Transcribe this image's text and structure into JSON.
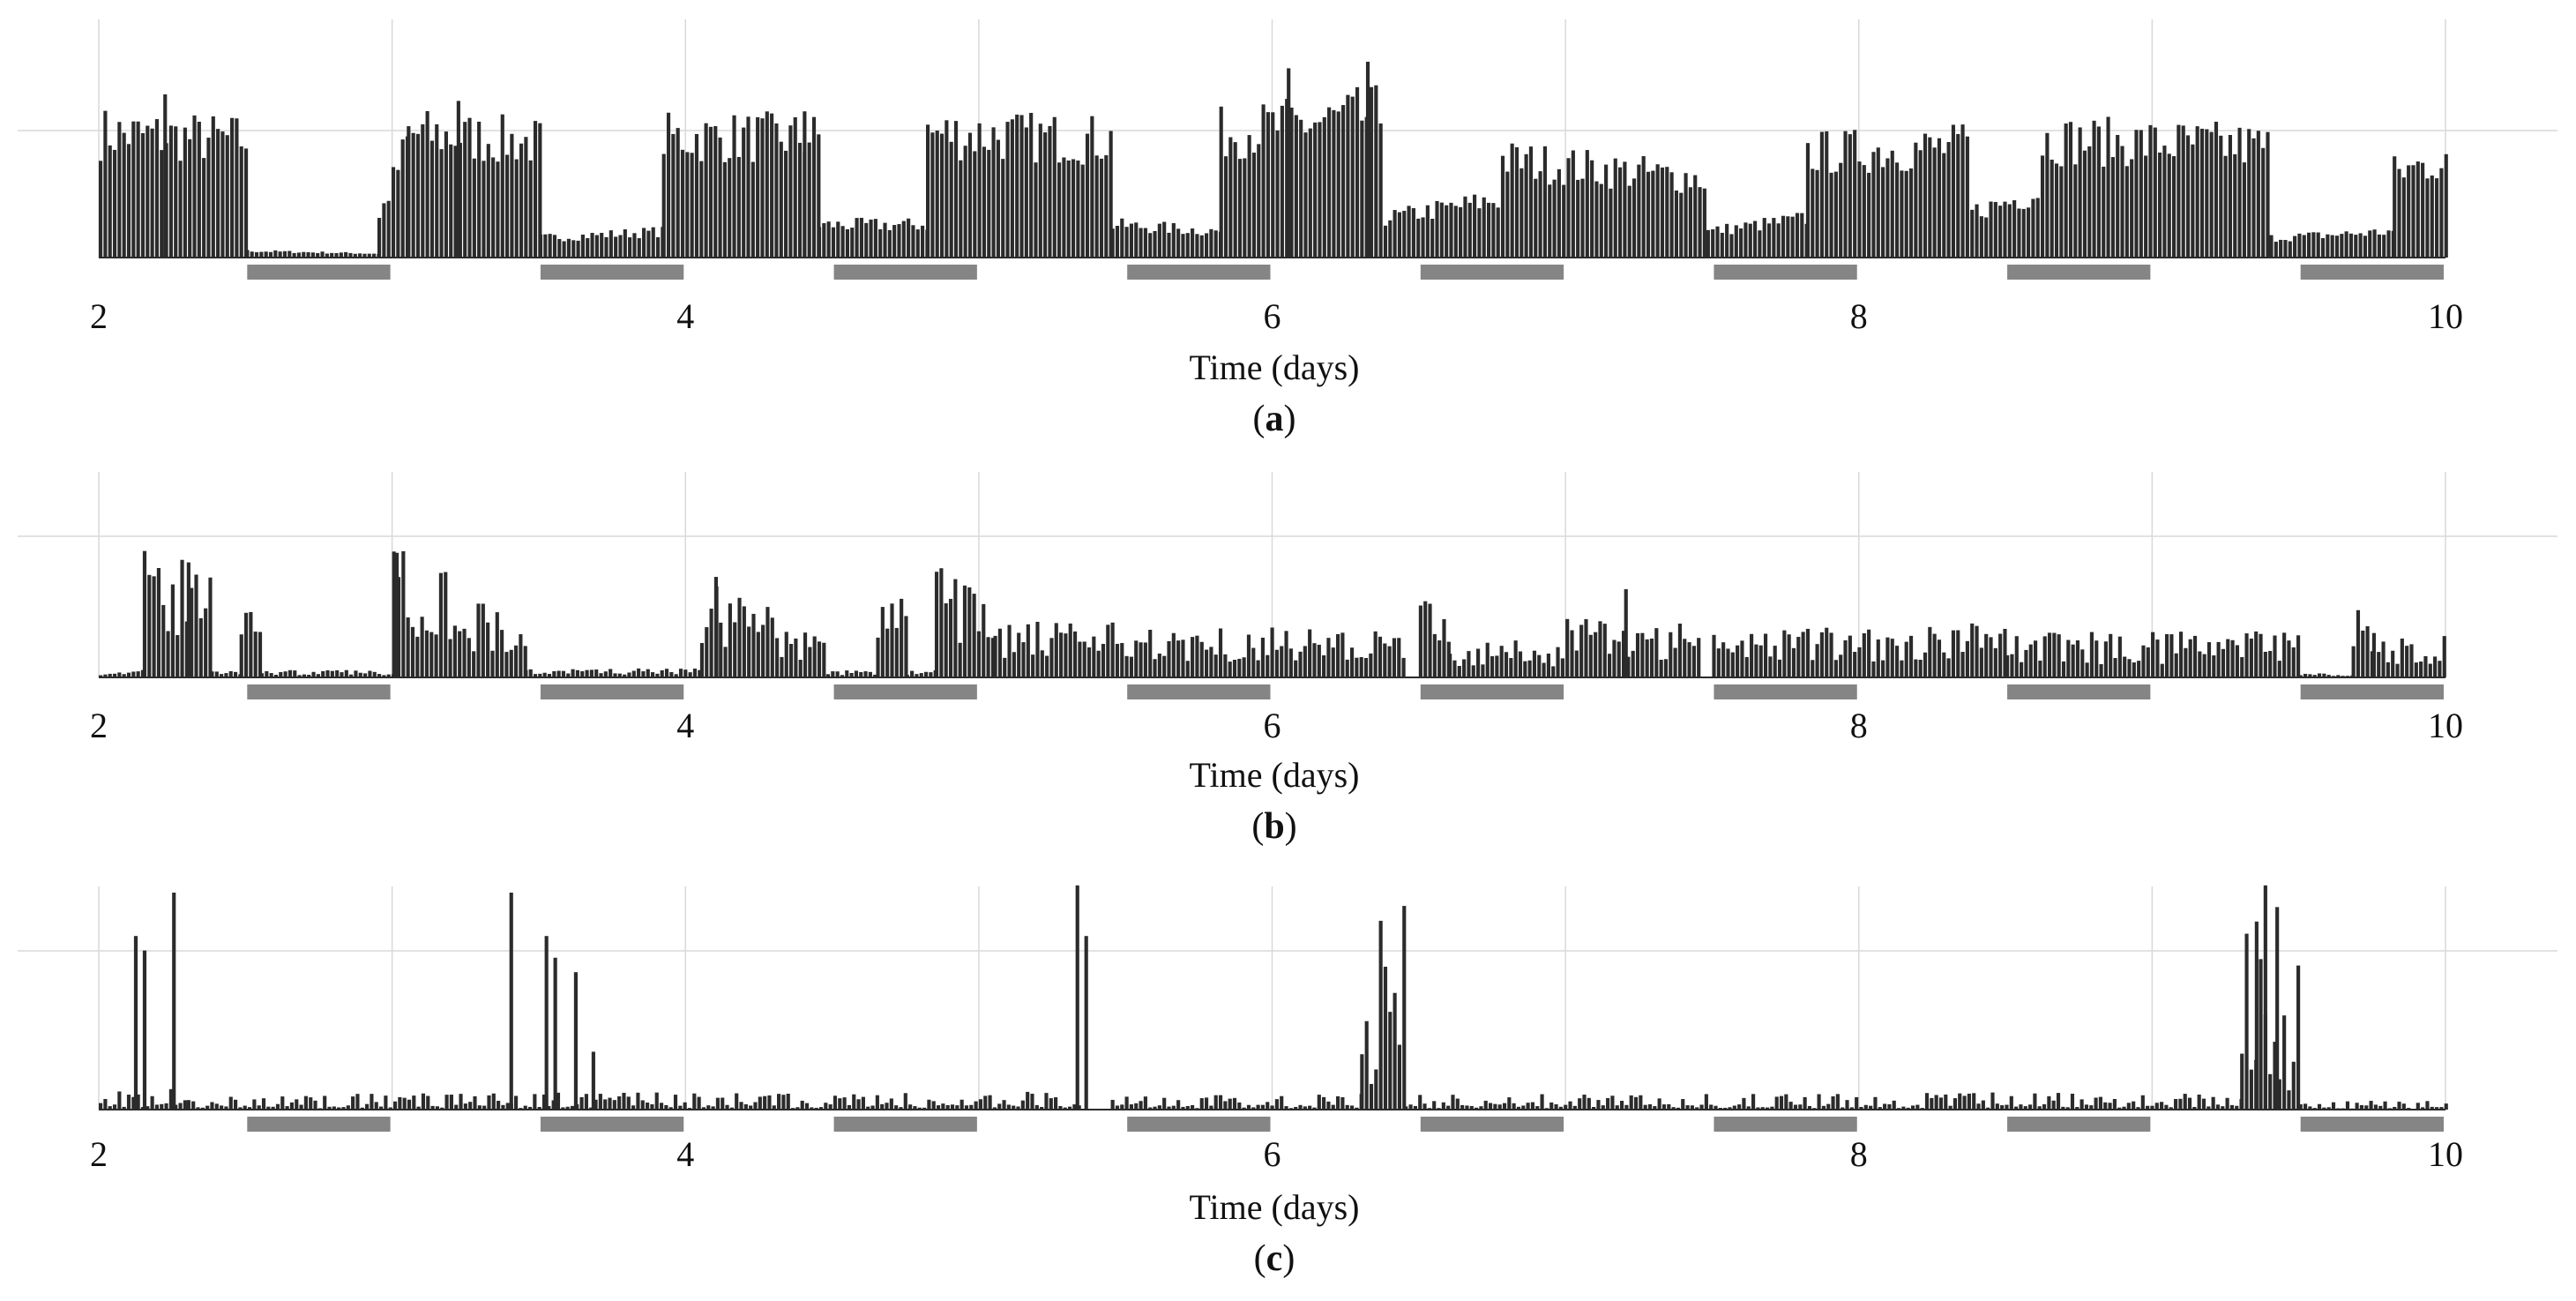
{
  "colors": {
    "bar": "#2b2b2b",
    "night_bar": "#858585",
    "grid": "#d9d9d9",
    "text": "#111111"
  },
  "chart_data": [
    {
      "type": "bar",
      "panel_label_prefix": "(",
      "panel_label_letter": "a",
      "panel_label_suffix": ")",
      "xlabel": "Time (days)",
      "xlim": [
        2,
        10
      ],
      "ylim": [
        0,
        1.5
      ],
      "xticks": [
        "2",
        "4",
        "6",
        "8",
        "10"
      ],
      "grid": "on",
      "dark_periods": [
        [
          2.5,
          3.0
        ],
        [
          3.5,
          4.0
        ],
        [
          4.5,
          5.0
        ],
        [
          5.5,
          6.0
        ],
        [
          6.5,
          7.0
        ],
        [
          7.5,
          8.0
        ],
        [
          8.5,
          9.0
        ],
        [
          9.5,
          10.0
        ]
      ],
      "segments": [
        {
          "x": [
            2.0,
            2.5
          ],
          "y": [
            0.95,
            0.9
          ]
        },
        {
          "x": [
            2.5,
            2.95
          ],
          "y": [
            0.05,
            0.03
          ]
        },
        {
          "x": [
            2.95,
            3.05
          ],
          "y": [
            0.3,
            0.9
          ]
        },
        {
          "x": [
            3.05,
            3.5
          ],
          "y": [
            0.95,
            0.88
          ]
        },
        {
          "x": [
            3.5,
            3.92
          ],
          "y": [
            0.15,
            0.2
          ]
        },
        {
          "x": [
            3.92,
            4.45
          ],
          "y": [
            0.92,
            0.92
          ]
        },
        {
          "x": [
            4.45,
            4.82
          ],
          "y": [
            0.25,
            0.25
          ]
        },
        {
          "x": [
            4.82,
            5.45
          ],
          "y": [
            0.95,
            0.9
          ]
        },
        {
          "x": [
            5.45,
            5.82
          ],
          "y": [
            0.25,
            0.2
          ]
        },
        {
          "x": [
            5.82,
            6.38
          ],
          "y": [
            0.95,
            1.1
          ]
        },
        {
          "x": [
            6.38,
            6.78
          ],
          "y": [
            0.3,
            0.45
          ]
        },
        {
          "x": [
            6.78,
            7.48
          ],
          "y": [
            0.75,
            0.6
          ]
        },
        {
          "x": [
            7.48,
            7.82
          ],
          "y": [
            0.2,
            0.3
          ]
        },
        {
          "x": [
            7.82,
            8.38
          ],
          "y": [
            0.8,
            0.85
          ]
        },
        {
          "x": [
            8.38,
            8.62
          ],
          "y": [
            0.35,
            0.5
          ]
        },
        {
          "x": [
            8.62,
            9.4
          ],
          "y": [
            0.9,
            0.85
          ]
        },
        {
          "x": [
            9.4,
            9.82
          ],
          "y": [
            0.15,
            0.2
          ]
        },
        {
          "x": [
            9.82,
            10.0
          ],
          "y": [
            0.65,
            0.75
          ]
        }
      ],
      "spikes": [
        {
          "x": 6.05,
          "y": 1.45
        },
        {
          "x": 6.32,
          "y": 1.5
        },
        {
          "x": 2.22,
          "y": 1.25
        },
        {
          "x": 3.22,
          "y": 1.2
        },
        {
          "x": 4.4,
          "y": 1.12
        }
      ]
    },
    {
      "type": "bar",
      "panel_label_prefix": "(",
      "panel_label_letter": "b",
      "panel_label_suffix": ")",
      "xlabel": "Time (days)",
      "xlim": [
        2,
        10
      ],
      "ylim": [
        0,
        1.5
      ],
      "xticks": [
        "2",
        "4",
        "6",
        "8",
        "10"
      ],
      "grid": "on",
      "dark_periods": [
        [
          2.5,
          3.0
        ],
        [
          3.5,
          4.0
        ],
        [
          4.5,
          5.0
        ],
        [
          5.5,
          6.0
        ],
        [
          6.5,
          7.0
        ],
        [
          7.5,
          8.0
        ],
        [
          8.5,
          9.0
        ],
        [
          9.5,
          10.0
        ]
      ],
      "segments": [
        {
          "x": [
            2.0,
            2.15
          ],
          "y": [
            0.05,
            0.05
          ]
        },
        {
          "x": [
            2.15,
            2.38
          ],
          "y": [
            0.9,
            0.8
          ]
        },
        {
          "x": [
            2.38,
            2.48
          ],
          "y": [
            0.05,
            0.05
          ]
        },
        {
          "x": [
            2.48,
            2.55
          ],
          "y": [
            0.65,
            0.6
          ]
        },
        {
          "x": [
            2.55,
            3.0
          ],
          "y": [
            0.05,
            0.05
          ]
        },
        {
          "x": [
            3.0,
            3.45
          ],
          "y": [
            1.05,
            0.3
          ]
        },
        {
          "x": [
            3.45,
            4.05
          ],
          "y": [
            0.06,
            0.06
          ]
        },
        {
          "x": [
            4.05,
            4.48
          ],
          "y": [
            0.75,
            0.25
          ]
        },
        {
          "x": [
            4.48,
            4.65
          ],
          "y": [
            0.05,
            0.05
          ]
        },
        {
          "x": [
            4.65,
            4.75
          ],
          "y": [
            0.6,
            0.55
          ]
        },
        {
          "x": [
            4.75,
            4.85
          ],
          "y": [
            0.05,
            0.05
          ]
        },
        {
          "x": [
            4.85,
            5.05
          ],
          "y": [
            0.9,
            0.5
          ]
        },
        {
          "x": [
            5.05,
            6.25
          ],
          "y": [
            0.38,
            0.35
          ]
        },
        {
          "x": [
            6.25,
            6.45
          ],
          "y": [
            0.3,
            0.35
          ]
        },
        {
          "x": [
            6.5,
            6.6
          ],
          "y": [
            0.55,
            0.45
          ]
        },
        {
          "x": [
            6.6,
            7.0
          ],
          "y": [
            0.25,
            0.25
          ]
        },
        {
          "x": [
            7.0,
            7.45
          ],
          "y": [
            0.4,
            0.38
          ]
        },
        {
          "x": [
            7.5,
            8.5
          ],
          "y": [
            0.35,
            0.38
          ]
        },
        {
          "x": [
            8.5,
            9.5
          ],
          "y": [
            0.3,
            0.32
          ]
        },
        {
          "x": [
            9.5,
            9.68
          ],
          "y": [
            0.03,
            0.03
          ]
        },
        {
          "x": [
            9.68,
            9.75
          ],
          "y": [
            0.5,
            0.45
          ]
        },
        {
          "x": [
            9.75,
            10.0
          ],
          "y": [
            0.3,
            0.3
          ]
        }
      ],
      "spikes": [
        {
          "x": 3.01,
          "y": 1.3
        },
        {
          "x": 7.2,
          "y": 0.92
        },
        {
          "x": 2.3,
          "y": 1.2
        },
        {
          "x": 4.1,
          "y": 0.95
        }
      ]
    },
    {
      "type": "bar",
      "panel_label_prefix": "(",
      "panel_label_letter": "c",
      "panel_label_suffix": ")",
      "xlabel": "Time (days)",
      "xlim": [
        2,
        10
      ],
      "ylim": [
        0,
        1.5
      ],
      "xticks": [
        "2",
        "4",
        "6",
        "8",
        "10"
      ],
      "grid": "on",
      "dark_periods": [
        [
          2.5,
          3.0
        ],
        [
          3.5,
          4.0
        ],
        [
          4.5,
          5.0
        ],
        [
          5.5,
          6.0
        ],
        [
          6.5,
          7.0
        ],
        [
          7.5,
          8.0
        ],
        [
          8.5,
          9.0
        ],
        [
          9.5,
          10.0
        ]
      ],
      "segments": [
        {
          "x": [
            2.0,
            2.3
          ],
          "y": [
            0.1,
            0.1
          ]
        },
        {
          "x": [
            2.3,
            3.4
          ],
          "y": [
            0.06,
            0.08
          ]
        },
        {
          "x": [
            3.4,
            5.35
          ],
          "y": [
            0.08,
            0.08
          ]
        },
        {
          "x": [
            5.45,
            6.3
          ],
          "y": [
            0.06,
            0.08
          ]
        },
        {
          "x": [
            6.3,
            6.45
          ],
          "y": [
            0.85,
            0.95
          ]
        },
        {
          "x": [
            6.45,
            9.3
          ],
          "y": [
            0.07,
            0.08
          ]
        },
        {
          "x": [
            9.3,
            9.5
          ],
          "y": [
            0.95,
            0.75
          ]
        },
        {
          "x": [
            9.5,
            10.0
          ],
          "y": [
            0.04,
            0.04
          ]
        }
      ],
      "spikes": [
        {
          "x": 2.12,
          "y": 1.2
        },
        {
          "x": 2.15,
          "y": 1.1
        },
        {
          "x": 2.25,
          "y": 1.5
        },
        {
          "x": 3.4,
          "y": 1.5
        },
        {
          "x": 3.52,
          "y": 1.2
        },
        {
          "x": 3.55,
          "y": 1.05
        },
        {
          "x": 3.62,
          "y": 0.95
        },
        {
          "x": 3.68,
          "y": 0.4
        },
        {
          "x": 5.33,
          "y": 1.55
        },
        {
          "x": 5.36,
          "y": 1.2
        },
        {
          "x": 9.35,
          "y": 1.3
        },
        {
          "x": 9.38,
          "y": 1.55
        },
        {
          "x": 9.42,
          "y": 1.4
        }
      ]
    }
  ]
}
